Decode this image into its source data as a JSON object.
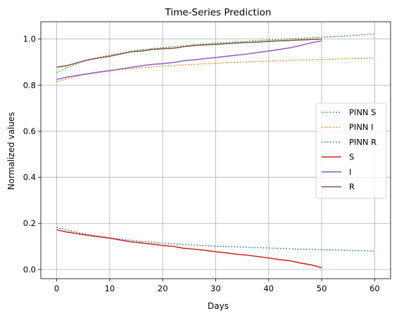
{
  "chart_data": {
    "type": "line",
    "title": "Time-Series Prediction",
    "xlabel": "Days",
    "ylabel": "Normalized values",
    "xlim": [
      -3,
      63
    ],
    "ylim": [
      -0.04,
      1.075
    ],
    "xticks": [
      0,
      10,
      20,
      30,
      40,
      50,
      60
    ],
    "yticks": [
      0.0,
      0.2,
      0.4,
      0.6,
      0.8,
      1.0
    ],
    "xtick_labels": [
      "0",
      "10",
      "20",
      "30",
      "40",
      "50",
      "60"
    ],
    "ytick_labels": [
      "0.0",
      "0.2",
      "0.4",
      "0.6",
      "0.8",
      "1.0"
    ],
    "grid": true,
    "legend_position": "center-right",
    "series": [
      {
        "name": "PINN S",
        "color": "#1f77b4",
        "style": "dotted",
        "x": [
          0,
          5,
          10,
          15,
          20,
          25,
          30,
          35,
          40,
          45,
          50,
          55,
          60
        ],
        "y": [
          0.182,
          0.155,
          0.137,
          0.124,
          0.114,
          0.107,
          0.101,
          0.097,
          0.093,
          0.089,
          0.086,
          0.083,
          0.08
        ]
      },
      {
        "name": "PINN I",
        "color": "#ff7f0e",
        "style": "dotted",
        "x": [
          0,
          5,
          10,
          15,
          20,
          25,
          30,
          35,
          40,
          45,
          50,
          55,
          60
        ],
        "y": [
          0.815,
          0.845,
          0.862,
          0.874,
          0.882,
          0.889,
          0.895,
          0.9,
          0.904,
          0.908,
          0.911,
          0.915,
          0.918
        ]
      },
      {
        "name": "PINN R",
        "color": "#2ca02c",
        "style": "dotted",
        "x": [
          0,
          5,
          10,
          15,
          20,
          25,
          30,
          35,
          40,
          45,
          50,
          55,
          60
        ],
        "y": [
          0.855,
          0.905,
          0.93,
          0.95,
          0.963,
          0.973,
          0.982,
          0.989,
          0.996,
          1.002,
          1.008,
          1.014,
          1.022
        ]
      },
      {
        "name": "S",
        "color": "#d62728",
        "style": "solid",
        "x": [
          0,
          2,
          4,
          6,
          8,
          10,
          12,
          14,
          16,
          18,
          20,
          22,
          24,
          26,
          28,
          30,
          32,
          34,
          36,
          38,
          40,
          42,
          44,
          46,
          48,
          50
        ],
        "y": [
          0.172,
          0.162,
          0.155,
          0.148,
          0.142,
          0.136,
          0.128,
          0.12,
          0.115,
          0.11,
          0.104,
          0.1,
          0.092,
          0.088,
          0.083,
          0.077,
          0.072,
          0.066,
          0.062,
          0.056,
          0.05,
          0.043,
          0.038,
          0.028,
          0.02,
          0.008
        ]
      },
      {
        "name": "I",
        "color": "#9467bd",
        "style": "solid",
        "x": [
          0,
          2,
          4,
          6,
          8,
          10,
          12,
          14,
          16,
          18,
          20,
          22,
          24,
          26,
          28,
          30,
          32,
          34,
          36,
          38,
          40,
          42,
          44,
          46,
          48,
          50
        ],
        "y": [
          0.825,
          0.835,
          0.843,
          0.85,
          0.857,
          0.863,
          0.87,
          0.877,
          0.884,
          0.89,
          0.893,
          0.898,
          0.906,
          0.91,
          0.915,
          0.92,
          0.925,
          0.93,
          0.935,
          0.942,
          0.948,
          0.955,
          0.962,
          0.972,
          0.984,
          0.992
        ]
      },
      {
        "name": "R",
        "color": "#8c564b",
        "style": "solid",
        "x": [
          0,
          2,
          4,
          6,
          8,
          10,
          12,
          14,
          16,
          18,
          20,
          22,
          24,
          26,
          28,
          30,
          32,
          34,
          36,
          38,
          40,
          42,
          44,
          46,
          48,
          50
        ],
        "y": [
          0.878,
          0.885,
          0.898,
          0.91,
          0.918,
          0.925,
          0.935,
          0.945,
          0.948,
          0.955,
          0.958,
          0.96,
          0.967,
          0.972,
          0.975,
          0.977,
          0.98,
          0.983,
          0.985,
          0.987,
          0.99,
          0.992,
          0.994,
          0.996,
          0.998,
          1.0
        ]
      }
    ]
  }
}
